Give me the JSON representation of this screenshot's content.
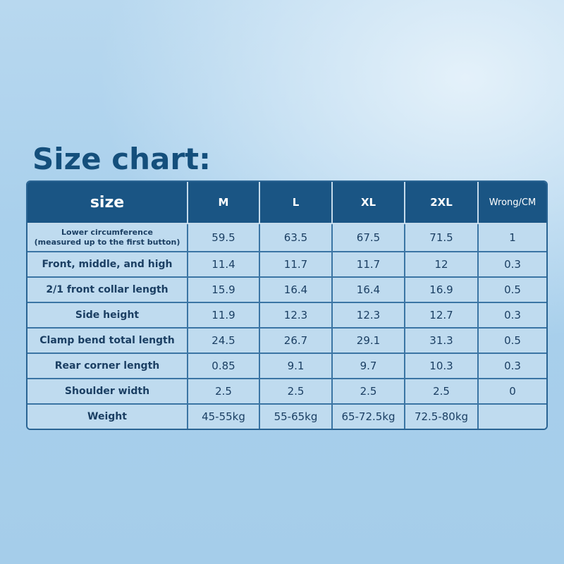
{
  "title": "Size chart:",
  "table": {
    "header": {
      "label": "size",
      "sizes": [
        "M",
        "L",
        "XL",
        "2XL"
      ],
      "tolerance": "Wrong/CM"
    },
    "rows": [
      {
        "label_line1": "Lower circumference",
        "label_line2": "(measured up to the first button)",
        "values": [
          "59.5",
          "63.5",
          "67.5",
          "71.5"
        ],
        "tolerance": "1"
      },
      {
        "label": "Front, middle, and high",
        "values": [
          "11.4",
          "11.7",
          "11.7",
          "12"
        ],
        "tolerance": "0.3"
      },
      {
        "label": "2/1 front collar length",
        "values": [
          "15.9",
          "16.4",
          "16.4",
          "16.9"
        ],
        "tolerance": "0.5"
      },
      {
        "label": "Side height",
        "values": [
          "11.9",
          "12.3",
          "12.3",
          "12.7"
        ],
        "tolerance": "0.3"
      },
      {
        "label": "Clamp bend total length",
        "values": [
          "24.5",
          "26.7",
          "29.1",
          "31.3"
        ],
        "tolerance": "0.5"
      },
      {
        "label": "Rear corner length",
        "values": [
          "0.85",
          "9.1",
          "9.7",
          "10.3"
        ],
        "tolerance": "0.3"
      },
      {
        "label": "Shoulder width",
        "values": [
          "2.5",
          "2.5",
          "2.5",
          "2.5"
        ],
        "tolerance": "0"
      },
      {
        "label": "Weight",
        "values": [
          "45-55kg",
          "55-65kg",
          "65-72.5kg",
          "72.5-80kg"
        ],
        "tolerance": ""
      }
    ]
  },
  "colors": {
    "title": "#144f7c",
    "header_bg": "#1a5584",
    "cell_bg": "#bfdbef",
    "text": "#1b3f63"
  }
}
